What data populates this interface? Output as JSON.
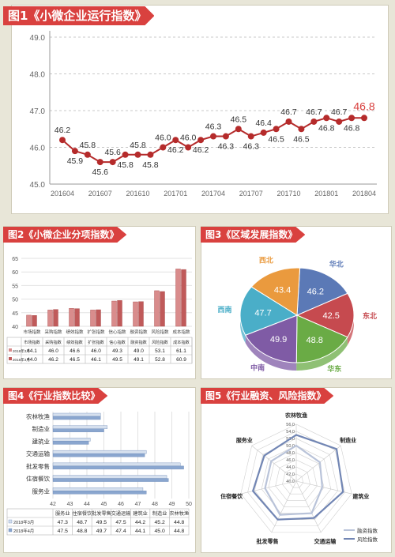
{
  "colors": {
    "accent": "#d9413f",
    "line": "#b52b2b",
    "bg": "#e8e6d8"
  },
  "chart_data": [
    {
      "id": "fig1",
      "type": "line",
      "title": "图1《小微企业运行指数》",
      "x_ticks": [
        "201604",
        "201607",
        "201610",
        "201701",
        "201704",
        "201707",
        "201710",
        "201801",
        "201804"
      ],
      "y_ticks": [
        "45.0",
        "46.0",
        "47.0",
        "48.0",
        "49.0"
      ],
      "ylim": [
        45,
        49
      ],
      "values": [
        46.2,
        45.9,
        45.8,
        45.6,
        45.6,
        45.8,
        45.8,
        45.8,
        46.0,
        46.2,
        46.0,
        46.2,
        46.3,
        46.3,
        46.5,
        46.3,
        46.4,
        46.5,
        46.7,
        46.5,
        46.7,
        46.8,
        46.7,
        46.8,
        46.8
      ],
      "labels": [
        "46.2",
        "45.9",
        "45.8",
        "45.6",
        "45.6",
        "45.8",
        "45.8",
        "45.8",
        "46.0",
        "46.2",
        "46.0",
        "46.2",
        "46.3",
        "46.3",
        "46.5",
        "46.3",
        "46.4",
        "46.5",
        "46.7",
        "46.5",
        "46.7",
        "46.8",
        "46.7",
        "46.8",
        "46.8"
      ],
      "last_label": "46.8"
    },
    {
      "id": "fig2",
      "type": "bar",
      "title": "图2《小微企业分项指数》",
      "categories": [
        "市场指数",
        "采购指数",
        "绩效指数",
        "扩张指数",
        "信心指数",
        "融资指数",
        "风险指数",
        "成本指数"
      ],
      "y_ticks": [
        "40",
        "45",
        "50",
        "55",
        "60",
        "65"
      ],
      "ylim": [
        40,
        65
      ],
      "series": [
        {
          "name": "2018年3月",
          "values": [
            44.1,
            46.0,
            46.6,
            46.0,
            49.3,
            49.0,
            53.1,
            61.1
          ],
          "labels": [
            "44.1",
            "46.0",
            "46.6",
            "46.0",
            "49.3",
            "49.0",
            "53.1",
            "61.1"
          ]
        },
        {
          "name": "2018年4月",
          "values": [
            44.0,
            46.2,
            46.5,
            46.1,
            49.5,
            49.1,
            52.8,
            60.9
          ],
          "labels": [
            "44.0",
            "46.2",
            "46.5",
            "46.1",
            "49.5",
            "49.1",
            "52.8",
            "60.9"
          ]
        }
      ]
    },
    {
      "id": "fig3",
      "type": "pie",
      "title": "图3《区域发展指数》",
      "slices": [
        {
          "name": "华北",
          "value": 46.2,
          "label": "46.2",
          "color": "#5b79b6"
        },
        {
          "name": "东北",
          "value": 42.5,
          "label": "42.5",
          "color": "#c64a4f"
        },
        {
          "name": "华东",
          "value": 48.8,
          "label": "48.8",
          "color": "#6aab45"
        },
        {
          "name": "中南",
          "value": 49.9,
          "label": "49.9",
          "color": "#7f5ba5"
        },
        {
          "name": "西南",
          "value": 47.7,
          "label": "47.7",
          "color": "#4aaec8"
        },
        {
          "name": "西北",
          "value": 43.4,
          "label": "43.4",
          "color": "#ea9a3e"
        }
      ]
    },
    {
      "id": "fig4",
      "type": "bar",
      "title": "图4《行业指数比较》",
      "categories": [
        "农林牧渔",
        "制造业",
        "建筑业",
        "交通运输",
        "批发零售",
        "住宿餐饮",
        "服务业"
      ],
      "x_ticks": [
        "42",
        "43",
        "44",
        "45",
        "46",
        "47",
        "48",
        "49",
        "50"
      ],
      "xlim": [
        42,
        50
      ],
      "table_headers": [
        "服务业",
        "住宿餐饮",
        "批发零售",
        "交通运输",
        "建筑业",
        "制造业",
        "农林牧渔"
      ],
      "series": [
        {
          "name": "2018年3月",
          "values": [
            44.8,
            45.2,
            44.2,
            47.5,
            49.5,
            48.7,
            47.3
          ],
          "labels": [
            "47.3",
            "48.7",
            "49.5",
            "47.5",
            "44.2",
            "45.2",
            "44.8"
          ]
        },
        {
          "name": "2018年4月",
          "values": [
            44.8,
            45.0,
            44.1,
            47.4,
            49.7,
            48.8,
            47.5
          ],
          "labels": [
            "47.5",
            "48.8",
            "49.7",
            "47.4",
            "44.1",
            "45.0",
            "44.8"
          ]
        }
      ]
    },
    {
      "id": "fig5",
      "type": "radar",
      "title": "图5《行业融资、风险指数》",
      "axes": [
        "农林牧渔",
        "制造业",
        "建筑业",
        "交通运输",
        "批发零售",
        "住宿餐饮",
        "服务业"
      ],
      "r_ticks": [
        "40.0",
        "42.0",
        "44.0",
        "46.0",
        "48.0",
        "50.0",
        "52.0",
        "54.0",
        "56.0"
      ],
      "rlim": [
        40,
        56
      ],
      "series": [
        {
          "name": "融资指数",
          "values": [
            50.0,
            48.5,
            47.5,
            50.0,
            50.5,
            49.0,
            49.0
          ]
        },
        {
          "name": "风险指数",
          "values": [
            53.0,
            54.5,
            53.5,
            51.5,
            52.0,
            52.5,
            51.5
          ]
        }
      ]
    }
  ]
}
